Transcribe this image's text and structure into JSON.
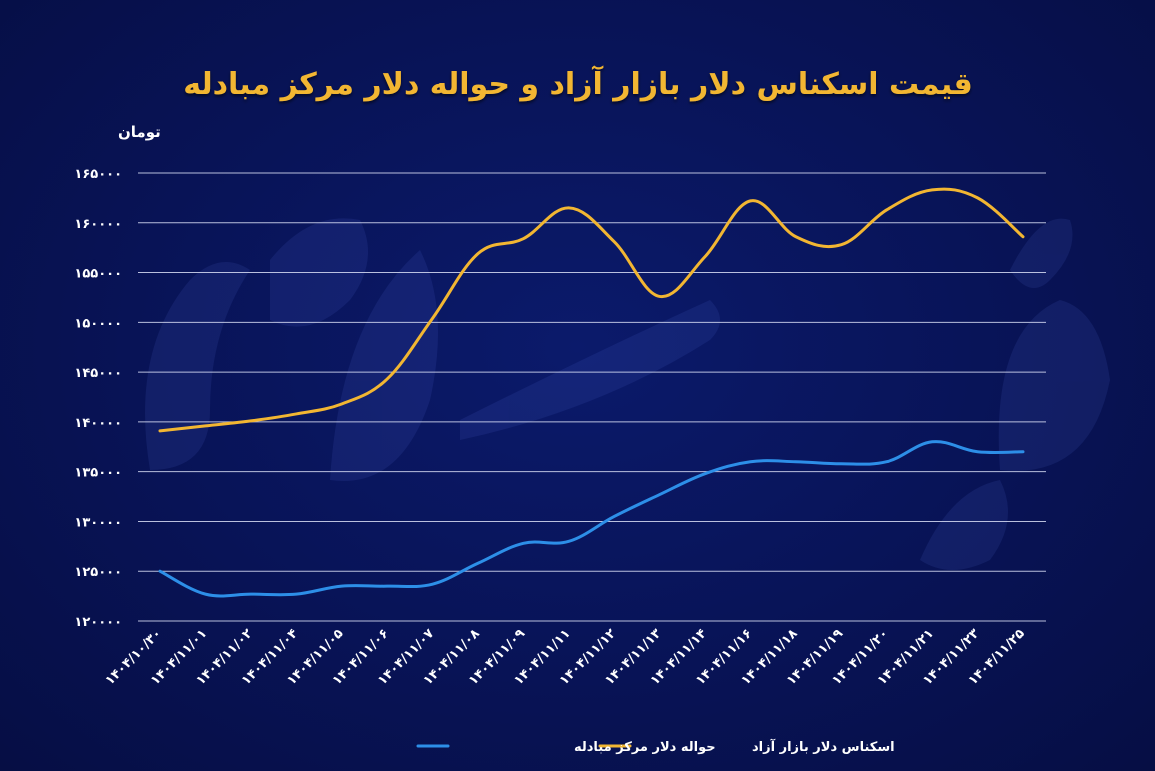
{
  "chart_data": {
    "type": "line",
    "title": "قیمت اسکناس دلار بازار آزاد و حواله دلار مرکز مبادله",
    "ylabel": "تومان",
    "xlabel": "",
    "ylim": [
      120000,
      165000
    ],
    "yticks": [
      {
        "value": 165000,
        "label": "۱۶۵۰۰۰"
      },
      {
        "value": 160000,
        "label": "۱۶۰۰۰۰"
      },
      {
        "value": 155000,
        "label": "۱۵۵۰۰۰"
      },
      {
        "value": 150000,
        "label": "۱۵۰۰۰۰"
      },
      {
        "value": 145000,
        "label": "۱۴۵۰۰۰"
      },
      {
        "value": 140000,
        "label": "۱۴۰۰۰۰"
      },
      {
        "value": 135000,
        "label": "۱۳۵۰۰۰"
      },
      {
        "value": 130000,
        "label": "۱۳۰۰۰۰"
      },
      {
        "value": 125000,
        "label": "۱۲۵۰۰۰"
      },
      {
        "value": 120000,
        "label": "۱۲۰۰۰۰"
      }
    ],
    "categories": [
      "۱۴۰۴/۱۰/۳۰",
      "۱۴۰۴/۱۱/۰۱",
      "۱۴۰۴/۱۱/۰۲",
      "۱۴۰۴/۱۱/۰۴",
      "۱۴۰۴/۱۱/۰۵",
      "۱۴۰۴/۱۱/۰۶",
      "۱۴۰۴/۱۱/۰۷",
      "۱۴۰۴/۱۱/۰۸",
      "۱۴۰۴/۱۱/۰۹",
      "۱۴۰۴/۱۱/۱۱",
      "۱۴۰۴/۱۱/۱۲",
      "۱۴۰۴/۱۱/۱۳",
      "۱۴۰۴/۱۱/۱۴",
      "۱۴۰۴/۱۱/۱۶",
      "۱۴۰۴/۱۱/۱۸",
      "۱۴۰۴/۱۱/۱۹",
      "۱۴۰۴/۱۱/۲۰",
      "۱۴۰۴/۱۱/۲۱",
      "۱۴۰۴/۱۱/۲۳",
      "۱۴۰۴/۱۱/۲۵"
    ],
    "series": [
      {
        "name": "اسکناس دلار بازار آزاد",
        "color": "#f2b632",
        "values": [
          139100,
          139600,
          140100,
          140800,
          141800,
          144300,
          150400,
          156900,
          158400,
          161500,
          158100,
          152600,
          156600,
          162200,
          158600,
          157800,
          161300,
          163300,
          162500,
          158600
        ]
      },
      {
        "name": "حواله دلار مرکز مبادله",
        "color": "#2d8fe8",
        "values": [
          125000,
          122700,
          122700,
          122700,
          123500,
          123500,
          123700,
          125800,
          127800,
          128000,
          130500,
          132700,
          134800,
          136000,
          136000,
          135800,
          136000,
          138000,
          137000,
          137000
        ]
      }
    ],
    "legend_position": "bottom-center",
    "grid": true
  }
}
